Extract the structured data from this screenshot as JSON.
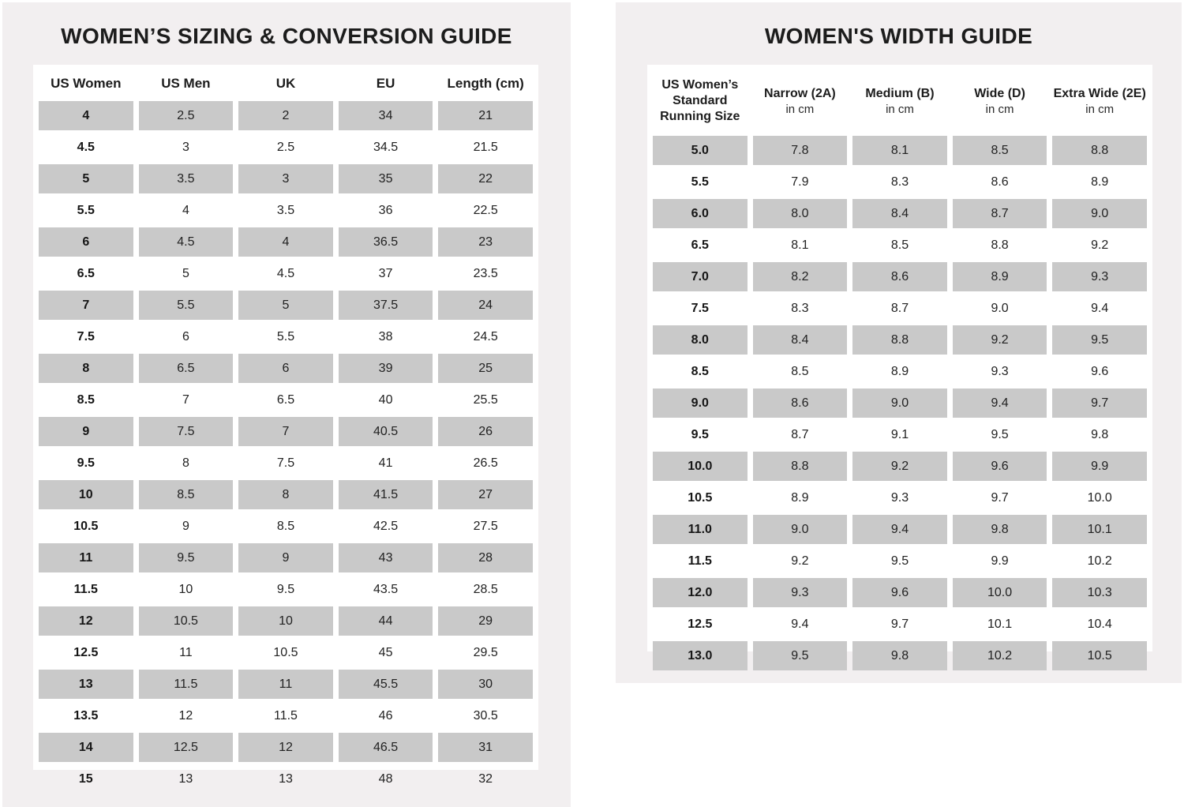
{
  "colors": {
    "panel_bg": "#f2eff0",
    "card_bg": "#ffffff",
    "row_shade": "#c9c9c9",
    "text": "#1c1c1c"
  },
  "sizing_guide": {
    "title": "WOMEN’S SIZING & CONVERSION GUIDE",
    "columns": [
      {
        "label": "US Women",
        "sub": ""
      },
      {
        "label": "US Men",
        "sub": ""
      },
      {
        "label": "UK",
        "sub": ""
      },
      {
        "label": "EU",
        "sub": ""
      },
      {
        "label": "Length (cm)",
        "sub": ""
      }
    ],
    "rows": [
      [
        "4",
        "2.5",
        "2",
        "34",
        "21"
      ],
      [
        "4.5",
        "3",
        "2.5",
        "34.5",
        "21.5"
      ],
      [
        "5",
        "3.5",
        "3",
        "35",
        "22"
      ],
      [
        "5.5",
        "4",
        "3.5",
        "36",
        "22.5"
      ],
      [
        "6",
        "4.5",
        "4",
        "36.5",
        "23"
      ],
      [
        "6.5",
        "5",
        "4.5",
        "37",
        "23.5"
      ],
      [
        "7",
        "5.5",
        "5",
        "37.5",
        "24"
      ],
      [
        "7.5",
        "6",
        "5.5",
        "38",
        "24.5"
      ],
      [
        "8",
        "6.5",
        "6",
        "39",
        "25"
      ],
      [
        "8.5",
        "7",
        "6.5",
        "40",
        "25.5"
      ],
      [
        "9",
        "7.5",
        "7",
        "40.5",
        "26"
      ],
      [
        "9.5",
        "8",
        "7.5",
        "41",
        "26.5"
      ],
      [
        "10",
        "8.5",
        "8",
        "41.5",
        "27"
      ],
      [
        "10.5",
        "9",
        "8.5",
        "42.5",
        "27.5"
      ],
      [
        "11",
        "9.5",
        "9",
        "43",
        "28"
      ],
      [
        "11.5",
        "10",
        "9.5",
        "43.5",
        "28.5"
      ],
      [
        "12",
        "10.5",
        "10",
        "44",
        "29"
      ],
      [
        "12.5",
        "11",
        "10.5",
        "45",
        "29.5"
      ],
      [
        "13",
        "11.5",
        "11",
        "45.5",
        "30"
      ],
      [
        "13.5",
        "12",
        "11.5",
        "46",
        "30.5"
      ],
      [
        "14",
        "12.5",
        "12",
        "46.5",
        "31"
      ],
      [
        "15",
        "13",
        "13",
        "48",
        "32"
      ]
    ]
  },
  "width_guide": {
    "title": "WOMEN'S WIDTH GUIDE",
    "columns": [
      {
        "label": "US Women’s Standard Running Size",
        "sub": ""
      },
      {
        "label": "Narrow (2A)",
        "sub": "in cm"
      },
      {
        "label": "Medium (B)",
        "sub": "in cm"
      },
      {
        "label": "Wide (D)",
        "sub": "in cm"
      },
      {
        "label": "Extra Wide (2E)",
        "sub": "in cm"
      }
    ],
    "rows": [
      [
        "5.0",
        "7.8",
        "8.1",
        "8.5",
        "8.8"
      ],
      [
        "5.5",
        "7.9",
        "8.3",
        "8.6",
        "8.9"
      ],
      [
        "6.0",
        "8.0",
        "8.4",
        "8.7",
        "9.0"
      ],
      [
        "6.5",
        "8.1",
        "8.5",
        "8.8",
        "9.2"
      ],
      [
        "7.0",
        "8.2",
        "8.6",
        "8.9",
        "9.3"
      ],
      [
        "7.5",
        "8.3",
        "8.7",
        "9.0",
        "9.4"
      ],
      [
        "8.0",
        "8.4",
        "8.8",
        "9.2",
        "9.5"
      ],
      [
        "8.5",
        "8.5",
        "8.9",
        "9.3",
        "9.6"
      ],
      [
        "9.0",
        "8.6",
        "9.0",
        "9.4",
        "9.7"
      ],
      [
        "9.5",
        "8.7",
        "9.1",
        "9.5",
        "9.8"
      ],
      [
        "10.0",
        "8.8",
        "9.2",
        "9.6",
        "9.9"
      ],
      [
        "10.5",
        "8.9",
        "9.3",
        "9.7",
        "10.0"
      ],
      [
        "11.0",
        "9.0",
        "9.4",
        "9.8",
        "10.1"
      ],
      [
        "11.5",
        "9.2",
        "9.5",
        "9.9",
        "10.2"
      ],
      [
        "12.0",
        "9.3",
        "9.6",
        "10.0",
        "10.3"
      ],
      [
        "12.5",
        "9.4",
        "9.7",
        "10.1",
        "10.4"
      ],
      [
        "13.0",
        "9.5",
        "9.8",
        "10.2",
        "10.5"
      ]
    ]
  }
}
